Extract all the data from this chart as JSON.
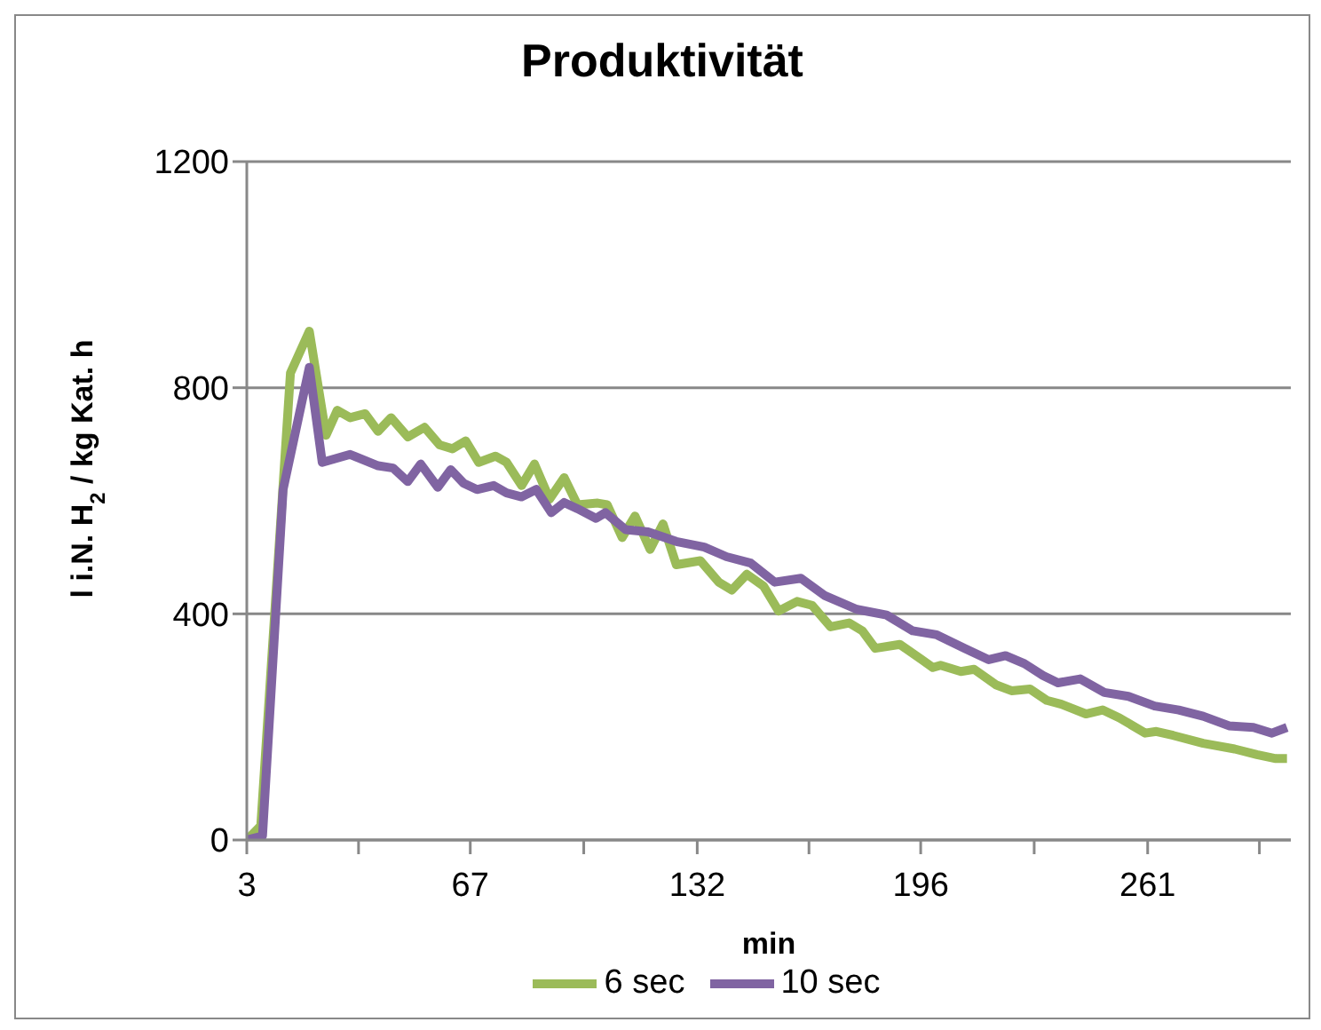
{
  "chart_data": {
    "type": "line",
    "title": "Produktivität",
    "xlabel": "min",
    "ylabel": "l i.N. H$_{2}$ / kg Kat. h",
    "xlim": [
      3,
      302
    ],
    "xticks": [
      3,
      {
        "value": 35,
        "label": null
      },
      67,
      {
        "value": 99.5,
        "label": null
      },
      132,
      {
        "value": 164,
        "label": null
      },
      196,
      {
        "value": 228.5,
        "label": null
      },
      261,
      {
        "value": 293,
        "label": null
      }
    ],
    "ylim": [
      0,
      1200
    ],
    "yticks": [
      0,
      400,
      800,
      1200
    ],
    "grid": "y",
    "legend": "bottom",
    "marker": "none",
    "line_style": "solid",
    "series": [
      {
        "name": "6 sec",
        "color": "#9bbb59",
        "x": [
          3,
          7,
          15.5,
          20.9,
          25.7,
          28.9,
          32.6,
          36.9,
          40.6,
          44.3,
          49.1,
          53.9,
          58.2,
          61.9,
          65.7,
          69.4,
          74.2,
          77.4,
          81.7,
          85.4,
          89.7,
          93.9,
          97.7,
          103.5,
          106.2,
          110.5,
          114.2,
          118.5,
          122.2,
          126,
          132.9,
          138.2,
          141.9,
          146.2,
          151,
          155.3,
          160.6,
          164.9,
          170.2,
          175.5,
          179.3,
          183,
          190,
          196.3,
          199.5,
          201.7,
          207.5,
          211.3,
          217.7,
          222,
          227.3,
          232.1,
          236.3,
          243.3,
          248.1,
          252.9,
          260.3,
          263.5,
          268.3,
          276.9,
          285.9,
          292.3,
          297.7,
          300.9
        ],
        "values": [
          0,
          25,
          826,
          900,
          716,
          760,
          747,
          754,
          723,
          747,
          713,
          730,
          699,
          692,
          706,
          668,
          679,
          668,
          627,
          665,
          603,
          641,
          593,
          596,
          593,
          535,
          573,
          514,
          559,
          487,
          494,
          456,
          442,
          470,
          449,
          405,
          422,
          415,
          377,
          384,
          370,
          339,
          346,
          319,
          305,
          309,
          298,
          302,
          274,
          264,
          267,
          247,
          240,
          223,
          230,
          216,
          189,
          192,
          185,
          171,
          161,
          151,
          144,
          144
        ]
      },
      {
        "name": "10 sec",
        "color": "#8064a2",
        "x": [
          3,
          7.5,
          13.4,
          20.9,
          24.6,
          32.6,
          40.6,
          44.9,
          49.1,
          52.8,
          57.7,
          61.4,
          65.1,
          68.9,
          73.7,
          77.4,
          81.7,
          85.9,
          90.2,
          93.9,
          97.7,
          103,
          105.7,
          111.5,
          117.9,
          126,
          134,
          140.4,
          147.3,
          154.2,
          161.7,
          168.6,
          177.7,
          186.2,
          193.7,
          200.6,
          208.6,
          215.5,
          220.3,
          225.7,
          231,
          235.3,
          241.7,
          248.6,
          255.5,
          263,
          269.9,
          276.9,
          284.3,
          291.3,
          296.6,
          300.9
        ],
        "values": [
          0,
          7,
          620,
          836,
          668,
          682,
          662,
          658,
          634,
          665,
          624,
          655,
          631,
          620,
          627,
          614,
          607,
          620,
          579,
          597,
          586,
          569,
          579,
          549,
          545,
          528,
          518,
          501,
          490,
          456,
          463,
          432,
          408,
          398,
          370,
          363,
          339,
          319,
          326,
          312,
          291,
          278,
          285,
          261,
          254,
          237,
          230,
          219,
          202,
          199,
          189,
          199
        ]
      }
    ]
  }
}
